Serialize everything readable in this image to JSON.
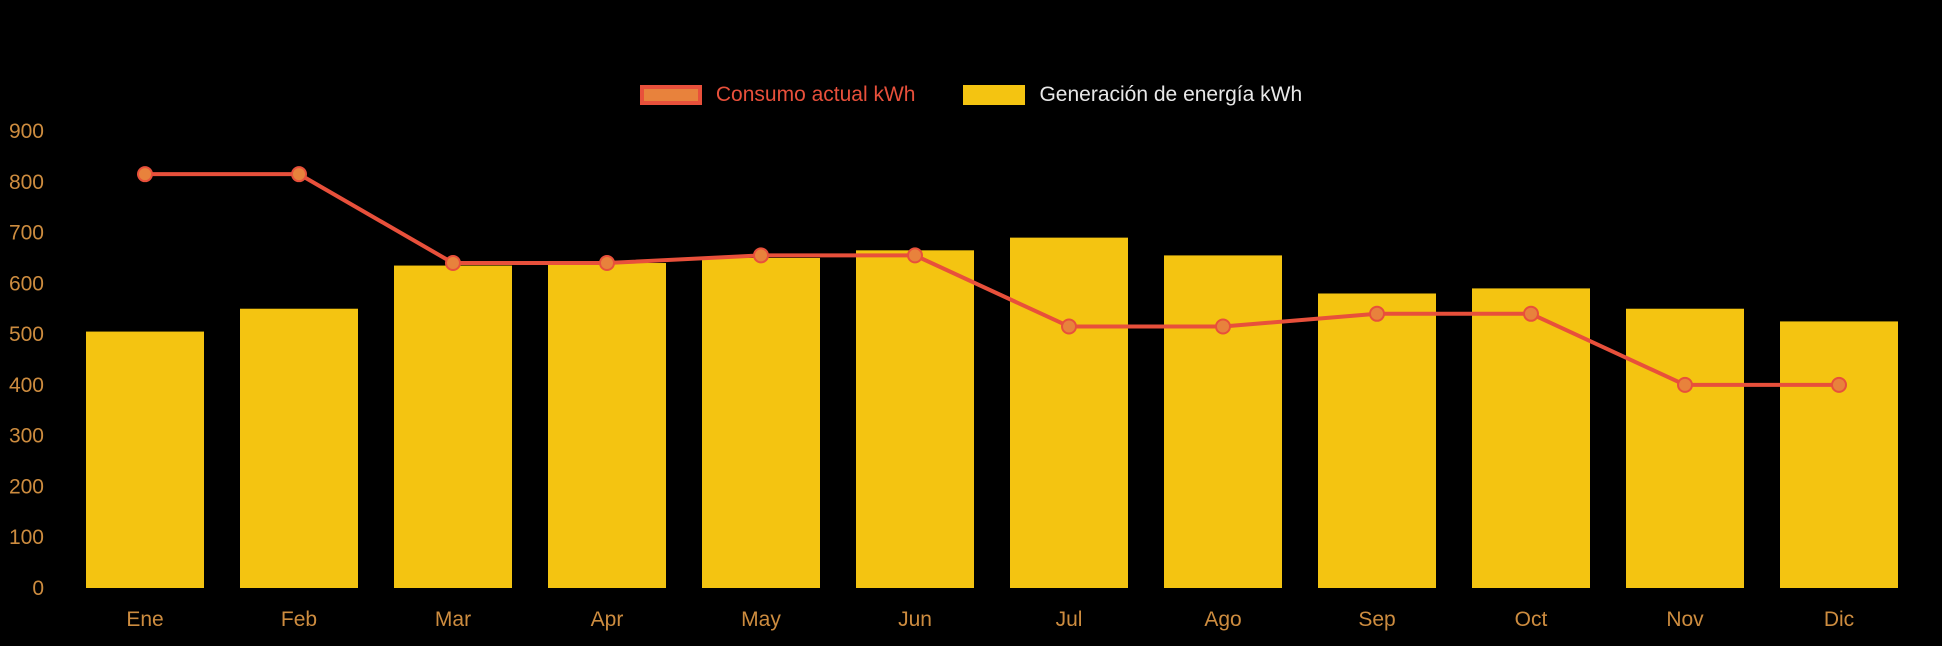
{
  "legend": {
    "items": [
      {
        "label": "Consumo actual kWh",
        "swatch_fill": "#E8823C",
        "swatch_border": "#E8503B",
        "text_color": "#E8503B"
      },
      {
        "label": "Generación de energía kWh",
        "swatch_fill": "#F4C411",
        "swatch_border": "#F4C411",
        "text_color": "#E8E8E8"
      }
    ]
  },
  "chart_data": {
    "type": "bar+line",
    "title": "",
    "xlabel": "",
    "ylabel": "",
    "categories": [
      "Ene",
      "Feb",
      "Mar",
      "Apr",
      "May",
      "Jun",
      "Jul",
      "Ago",
      "Sep",
      "Oct",
      "Nov",
      "Dic"
    ],
    "series": [
      {
        "name": "Generación de energía kWh",
        "type": "bar",
        "color": "#F4C411",
        "values": [
          505,
          550,
          635,
          640,
          650,
          665,
          690,
          655,
          580,
          590,
          550,
          525
        ]
      },
      {
        "name": "Consumo actual kWh",
        "type": "line",
        "color": "#E8503B",
        "point_fill": "#E8823C",
        "values": [
          815,
          815,
          640,
          640,
          655,
          655,
          515,
          515,
          540,
          540,
          400,
          400
        ]
      }
    ],
    "ylim": [
      0,
      900
    ],
    "yticks": [
      0,
      100,
      200,
      300,
      400,
      500,
      600,
      700,
      800,
      900
    ],
    "grid": false,
    "legend_position": "top",
    "background": "#000000",
    "tick_color": "#CD8C3F"
  }
}
